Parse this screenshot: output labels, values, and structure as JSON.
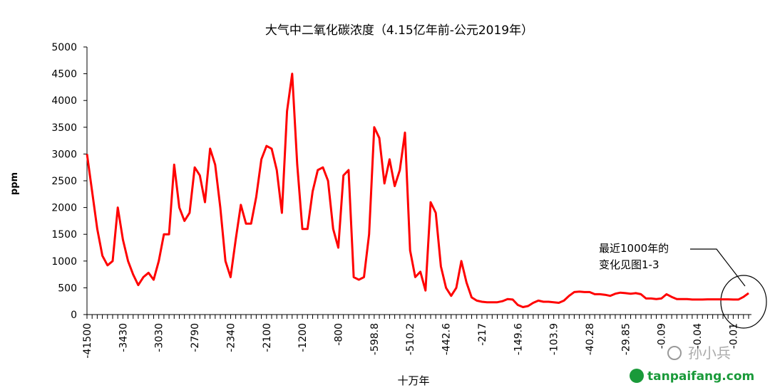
{
  "chart_data": {
    "type": "line",
    "title": "大气中二氧化碳浓度（4.15亿年前-公元2019年）",
    "y_label": "ppm",
    "x_label": "十万年",
    "annotation": [
      "最近1000年的",
      "变化见图1-3"
    ],
    "watermark": [
      "孙小兵",
      "tanpaifang.com"
    ],
    "color": "#ff0000",
    "categories": [
      "-41500",
      null,
      null,
      null,
      null,
      null,
      null,
      "-3430",
      null,
      null,
      null,
      null,
      null,
      null,
      "-3030",
      null,
      null,
      null,
      null,
      null,
      null,
      "-2790",
      null,
      null,
      null,
      null,
      null,
      null,
      "-2340",
      null,
      null,
      null,
      null,
      null,
      null,
      "-2100",
      null,
      null,
      null,
      null,
      null,
      null,
      "-1200",
      null,
      null,
      null,
      null,
      null,
      null,
      "-800",
      null,
      null,
      null,
      null,
      null,
      null,
      "-598.8",
      null,
      null,
      null,
      null,
      null,
      null,
      "-510.2",
      null,
      null,
      null,
      null,
      null,
      null,
      "-442.6",
      null,
      null,
      null,
      null,
      null,
      null,
      "-217",
      null,
      null,
      null,
      null,
      null,
      null,
      "-149.6",
      null,
      null,
      null,
      null,
      null,
      null,
      "-103.9",
      null,
      null,
      null,
      null,
      null,
      null,
      "-40.28",
      null,
      null,
      null,
      null,
      null,
      null,
      "-29.85",
      null,
      null,
      null,
      null,
      null,
      null,
      "-0.09",
      null,
      null,
      null,
      null,
      null,
      null,
      "-0.04",
      null,
      null,
      null,
      null,
      null,
      null,
      "-0.01",
      null,
      null,
      null
    ],
    "values": [
      3000,
      2300,
      1600,
      1100,
      920,
      1000,
      2000,
      1400,
      1000,
      750,
      550,
      700,
      780,
      650,
      1000,
      1500,
      1500,
      2800,
      2000,
      1750,
      1900,
      2750,
      2600,
      2100,
      3100,
      2800,
      2000,
      1000,
      700,
      1400,
      2050,
      1700,
      1700,
      2200,
      2900,
      3150,
      3100,
      2700,
      1900,
      3800,
      4500,
      2800,
      1600,
      1600,
      2300,
      2700,
      2750,
      2500,
      1600,
      1250,
      2600,
      2700,
      700,
      650,
      700,
      1500,
      3500,
      3300,
      2450,
      2900,
      2400,
      2700,
      3400,
      1200,
      700,
      800,
      450,
      2100,
      1900,
      900,
      500,
      350,
      500,
      1000,
      600,
      320,
      260,
      240,
      230,
      230,
      230,
      250,
      290,
      280,
      180,
      140,
      160,
      220,
      260,
      240,
      240,
      230,
      220,
      260,
      350,
      420,
      430,
      420,
      420,
      380,
      380,
      370,
      350,
      390,
      410,
      400,
      390,
      400,
      380,
      300,
      300,
      290,
      300,
      380,
      330,
      290,
      290,
      290,
      280,
      280,
      280,
      285,
      285,
      285,
      285,
      285,
      280,
      280,
      330,
      400
    ],
    "ylim": [
      0,
      5000
    ],
    "yticks": [
      0,
      500,
      1000,
      1500,
      2000,
      2500,
      3000,
      3500,
      4000,
      4500,
      5000
    ],
    "grid": false
  }
}
